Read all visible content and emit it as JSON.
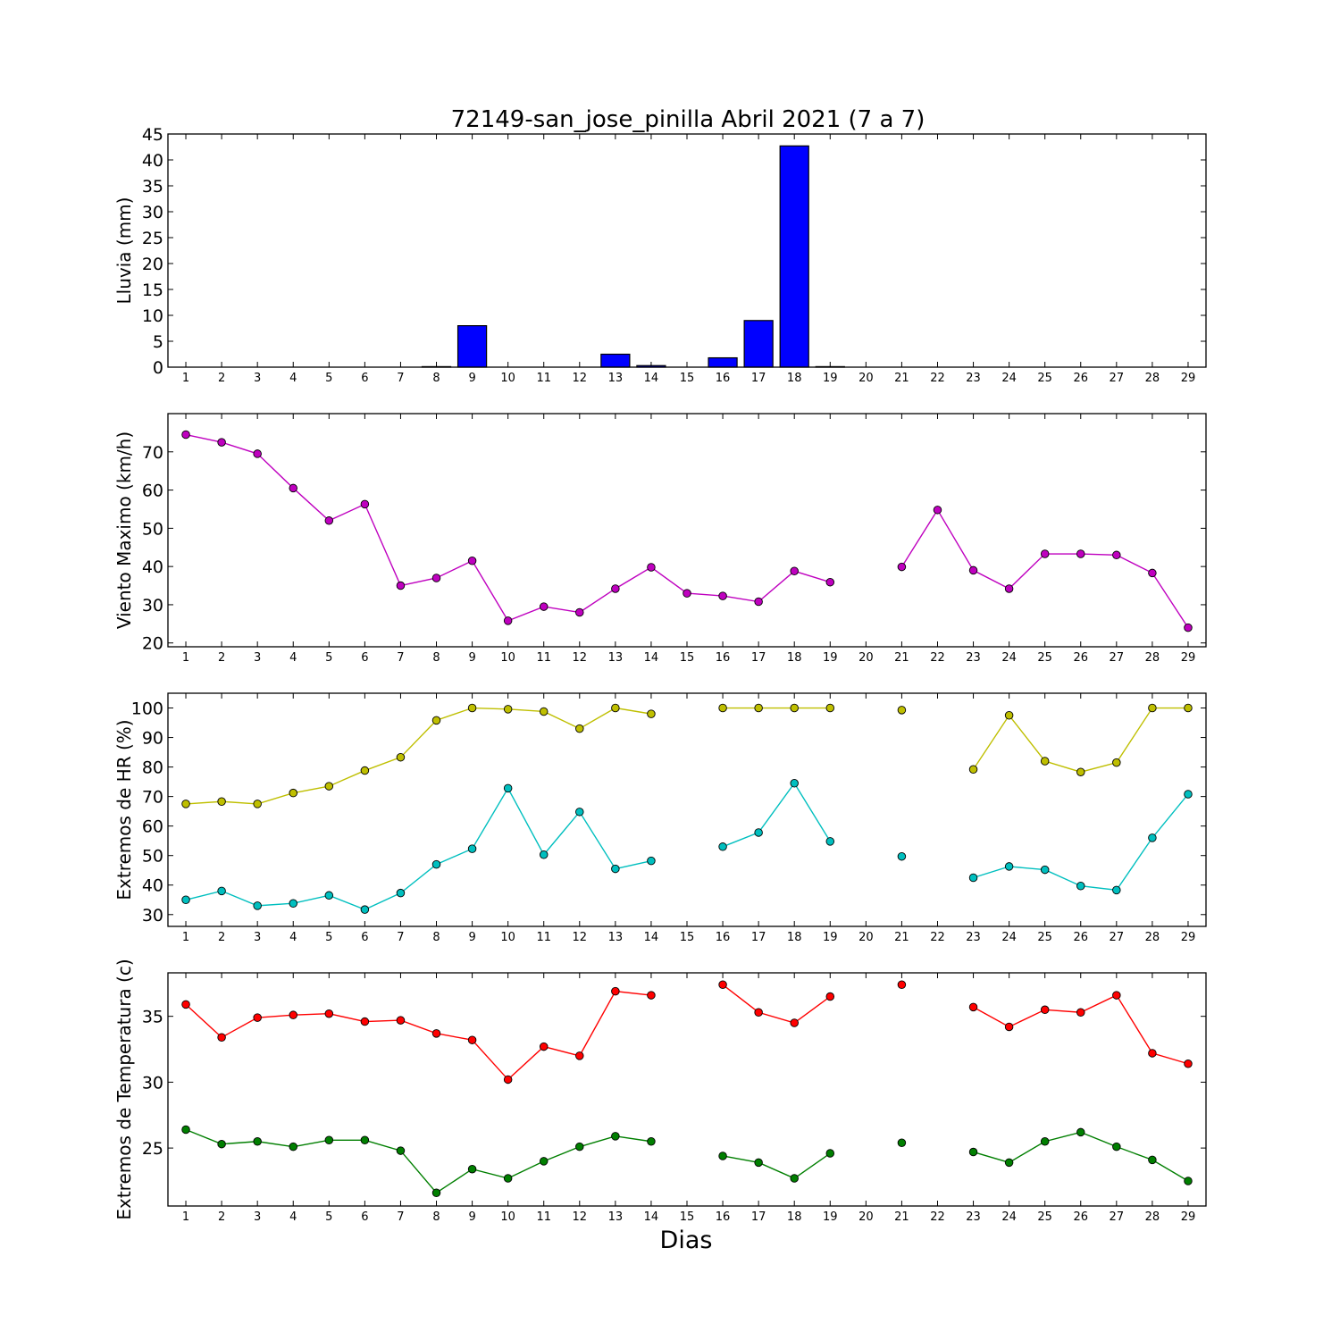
{
  "chart_data": [
    {
      "type": "bar",
      "title": "72149-san_jose_pinilla Abril 2021  (7 a 7)",
      "ylabel": "Lluvia (mm)",
      "xlabel": "",
      "ylim": [
        0,
        45
      ],
      "yticks": [
        0,
        5,
        10,
        15,
        20,
        25,
        30,
        35,
        40,
        45
      ],
      "x": [
        1,
        2,
        3,
        4,
        5,
        6,
        7,
        8,
        9,
        10,
        11,
        12,
        13,
        14,
        15,
        16,
        17,
        18,
        19,
        20,
        21,
        22,
        23,
        24,
        25,
        26,
        27,
        28,
        29
      ],
      "color": "#0000ff",
      "values": [
        0,
        0,
        0,
        0,
        0,
        0,
        0,
        0.1,
        8.0,
        0,
        0,
        0,
        2.5,
        0.3,
        0,
        1.8,
        9.0,
        42.7,
        0.1,
        0,
        0,
        0,
        0,
        0,
        0,
        0,
        0,
        0,
        0
      ]
    },
    {
      "type": "line",
      "ylabel": "Viento Maximo (km/h)",
      "ylim": [
        19,
        80
      ],
      "yticks": [
        20,
        30,
        40,
        50,
        60,
        70
      ],
      "x": [
        1,
        2,
        3,
        4,
        5,
        6,
        7,
        8,
        9,
        10,
        11,
        12,
        13,
        14,
        15,
        16,
        17,
        18,
        19,
        20,
        21,
        22,
        23,
        24,
        25,
        26,
        27,
        28,
        29
      ],
      "series": [
        {
          "color": "#bf00bf",
          "values": [
            74.5,
            72.5,
            69.5,
            60.5,
            52,
            56.3,
            35,
            37,
            41.5,
            25.8,
            29.5,
            28,
            34.2,
            39.8,
            33,
            32.3,
            30.8,
            38.8,
            35.9,
            null,
            39.9,
            54.8,
            39,
            34.2,
            43.3,
            43.3,
            43,
            38.3,
            24
          ]
        }
      ]
    },
    {
      "type": "line",
      "ylabel": "Extremos de HR (%)",
      "ylim": [
        26,
        105
      ],
      "yticks": [
        30,
        40,
        50,
        60,
        70,
        80,
        90,
        100
      ],
      "x": [
        1,
        2,
        3,
        4,
        5,
        6,
        7,
        8,
        9,
        10,
        11,
        12,
        13,
        14,
        15,
        16,
        17,
        18,
        19,
        20,
        21,
        22,
        23,
        24,
        25,
        26,
        27,
        28,
        29
      ],
      "series": [
        {
          "color": "#bfbf00",
          "values": [
            67.5,
            68.3,
            67.5,
            71.2,
            73.5,
            78.8,
            83.3,
            95.8,
            100,
            99.6,
            98.8,
            93,
            100,
            98,
            null,
            100,
            100,
            100,
            100,
            null,
            99.3,
            null,
            79.2,
            97.5,
            82,
            78.3,
            81.5,
            100,
            100
          ]
        },
        {
          "color": "#00bfbf",
          "values": [
            35,
            38,
            33,
            33.8,
            36.5,
            31.7,
            37.3,
            47,
            52.3,
            72.8,
            50.3,
            64.8,
            45.5,
            48.2,
            null,
            53,
            57.8,
            74.5,
            54.8,
            null,
            49.7,
            null,
            42.5,
            46.3,
            45.2,
            39.7,
            38.3,
            56,
            70.8
          ]
        }
      ]
    },
    {
      "type": "line",
      "ylabel": "Extremos de Temperatura (c)",
      "xlabel": "Dias",
      "ylim": [
        20.6,
        38.3
      ],
      "yticks": [
        25,
        30,
        35
      ],
      "x": [
        1,
        2,
        3,
        4,
        5,
        6,
        7,
        8,
        9,
        10,
        11,
        12,
        13,
        14,
        15,
        16,
        17,
        18,
        19,
        20,
        21,
        22,
        23,
        24,
        25,
        26,
        27,
        28,
        29
      ],
      "series": [
        {
          "color": "#ff0000",
          "values": [
            35.9,
            33.4,
            34.9,
            35.1,
            35.2,
            34.6,
            34.7,
            33.7,
            33.2,
            30.2,
            32.7,
            32,
            36.9,
            36.6,
            null,
            37.4,
            35.3,
            34.5,
            36.5,
            null,
            37.4,
            null,
            35.7,
            34.2,
            35.5,
            35.3,
            36.6,
            32.2,
            31.4
          ]
        },
        {
          "color": "#007f00",
          "values": [
            26.4,
            25.3,
            25.5,
            25.1,
            25.6,
            25.6,
            24.8,
            21.6,
            23.4,
            22.7,
            24,
            25.1,
            25.9,
            25.5,
            null,
            24.4,
            23.9,
            22.7,
            24.6,
            null,
            25.4,
            null,
            24.7,
            23.9,
            25.5,
            26.2,
            25.1,
            24.1,
            22.5
          ]
        }
      ]
    }
  ]
}
